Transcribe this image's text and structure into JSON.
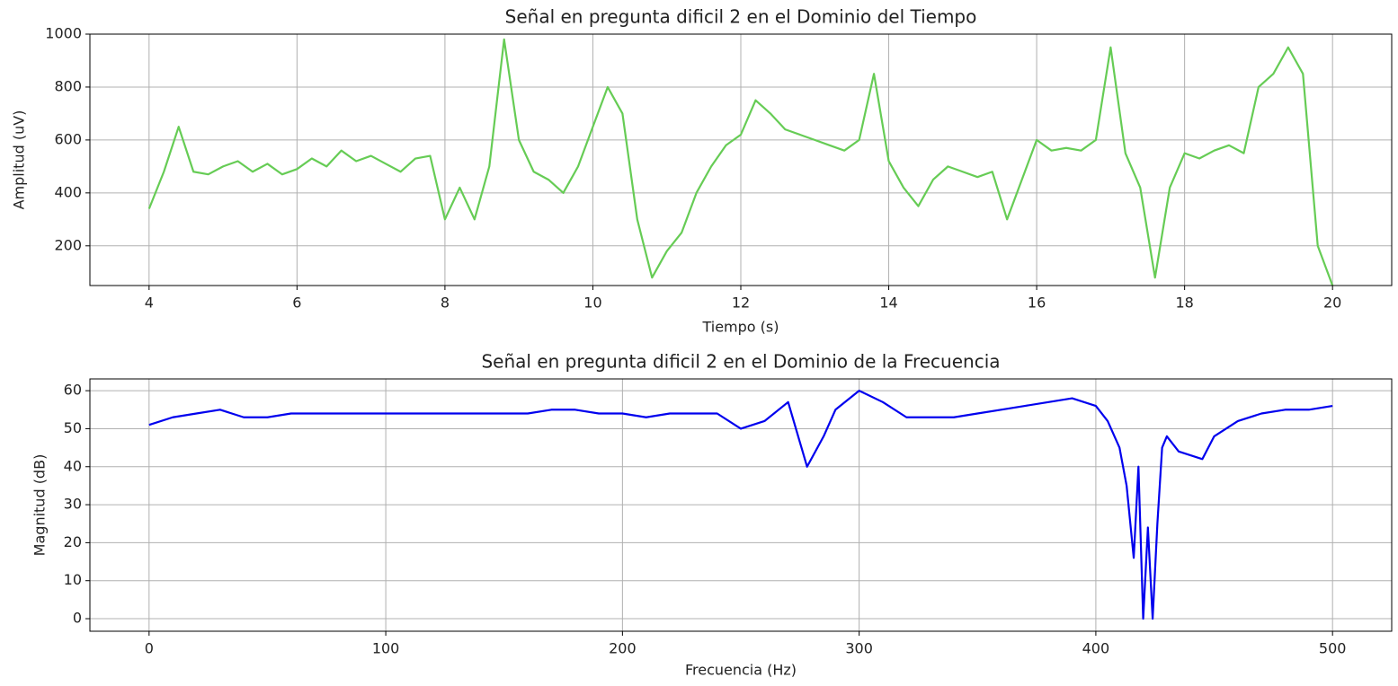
{
  "chart_data": [
    {
      "type": "line",
      "title": "Señal en pregunta dificil 2 en el Dominio del Tiempo",
      "x_label": "Tiempo (s)",
      "y_label": "Amplitud (uV)",
      "x": [
        4.0,
        4.2,
        4.4,
        4.6,
        4.8,
        5.0,
        5.2,
        5.4,
        5.6,
        5.8,
        6.0,
        6.2,
        6.4,
        6.6,
        6.8,
        7.0,
        7.2,
        7.4,
        7.6,
        7.8,
        8.0,
        8.2,
        8.4,
        8.6,
        8.8,
        9.0,
        9.2,
        9.4,
        9.6,
        9.8,
        10.0,
        10.2,
        10.4,
        10.6,
        10.8,
        11.0,
        11.2,
        11.4,
        11.6,
        11.8,
        12.0,
        12.2,
        12.4,
        12.6,
        12.8,
        13.0,
        13.2,
        13.4,
        13.6,
        13.8,
        14.0,
        14.2,
        14.4,
        14.6,
        14.8,
        15.0,
        15.2,
        15.4,
        15.6,
        15.8,
        16.0,
        16.2,
        16.4,
        16.6,
        16.8,
        17.0,
        17.2,
        17.4,
        17.6,
        17.8,
        18.0,
        18.2,
        18.4,
        18.6,
        18.8,
        19.0,
        19.2,
        19.4,
        19.6,
        19.8,
        20.0
      ],
      "series": [
        {
          "color": "#66cc55",
          "values": [
            340,
            480,
            650,
            480,
            470,
            500,
            520,
            480,
            510,
            470,
            490,
            530,
            500,
            560,
            520,
            540,
            510,
            480,
            530,
            540,
            300,
            420,
            300,
            500,
            980,
            600,
            480,
            450,
            400,
            500,
            650,
            800,
            700,
            300,
            80,
            180,
            250,
            400,
            500,
            580,
            620,
            750,
            700,
            640,
            620,
            600,
            580,
            560,
            600,
            850,
            520,
            420,
            350,
            450,
            500,
            480,
            460,
            480,
            300,
            450,
            600,
            560,
            570,
            560,
            600,
            950,
            550,
            420,
            80,
            420,
            550,
            530,
            560,
            580,
            550,
            800,
            850,
            950,
            850,
            200,
            50
          ]
        }
      ],
      "xlim": [
        3.2,
        20.8
      ],
      "ylim": [
        50,
        1000
      ],
      "xticks": [
        4,
        6,
        8,
        10,
        12,
        14,
        16,
        18,
        20
      ],
      "yticks": [
        200,
        400,
        600,
        800,
        1000
      ],
      "grid": true
    },
    {
      "type": "line",
      "title": "Señal en pregunta dificil 2 en el Dominio de la Frecuencia",
      "x_label": "Frecuencia (Hz)",
      "y_label": "Magnitud (dB)",
      "x": [
        0,
        10,
        20,
        30,
        40,
        50,
        60,
        70,
        80,
        90,
        100,
        110,
        120,
        130,
        140,
        150,
        160,
        170,
        180,
        190,
        200,
        210,
        220,
        230,
        240,
        250,
        260,
        270,
        278,
        285,
        290,
        300,
        310,
        320,
        330,
        340,
        350,
        360,
        370,
        380,
        390,
        400,
        405,
        410,
        413,
        416,
        418,
        420,
        422,
        424,
        426,
        428,
        430,
        435,
        440,
        445,
        450,
        460,
        470,
        480,
        490,
        500
      ],
      "series": [
        {
          "color": "#0000ee",
          "values": [
            51,
            53,
            54,
            55,
            53,
            53,
            54,
            54,
            54,
            54,
            54,
            54,
            54,
            54,
            54,
            54,
            54,
            55,
            55,
            54,
            54,
            53,
            54,
            54,
            54,
            50,
            52,
            57,
            40,
            48,
            55,
            60,
            57,
            53,
            53,
            53,
            54,
            55,
            56,
            57,
            58,
            56,
            52,
            45,
            35,
            16,
            40,
            0,
            24,
            0,
            25,
            45,
            48,
            44,
            43,
            42,
            48,
            52,
            54,
            55,
            55,
            56
          ]
        }
      ],
      "xlim": [
        -25,
        525
      ],
      "ylim": [
        -3.3,
        63.1
      ],
      "xticks": [
        0,
        100,
        200,
        300,
        400,
        500
      ],
      "yticks": [
        0,
        10,
        20,
        30,
        40,
        50,
        60
      ],
      "grid": true
    }
  ]
}
